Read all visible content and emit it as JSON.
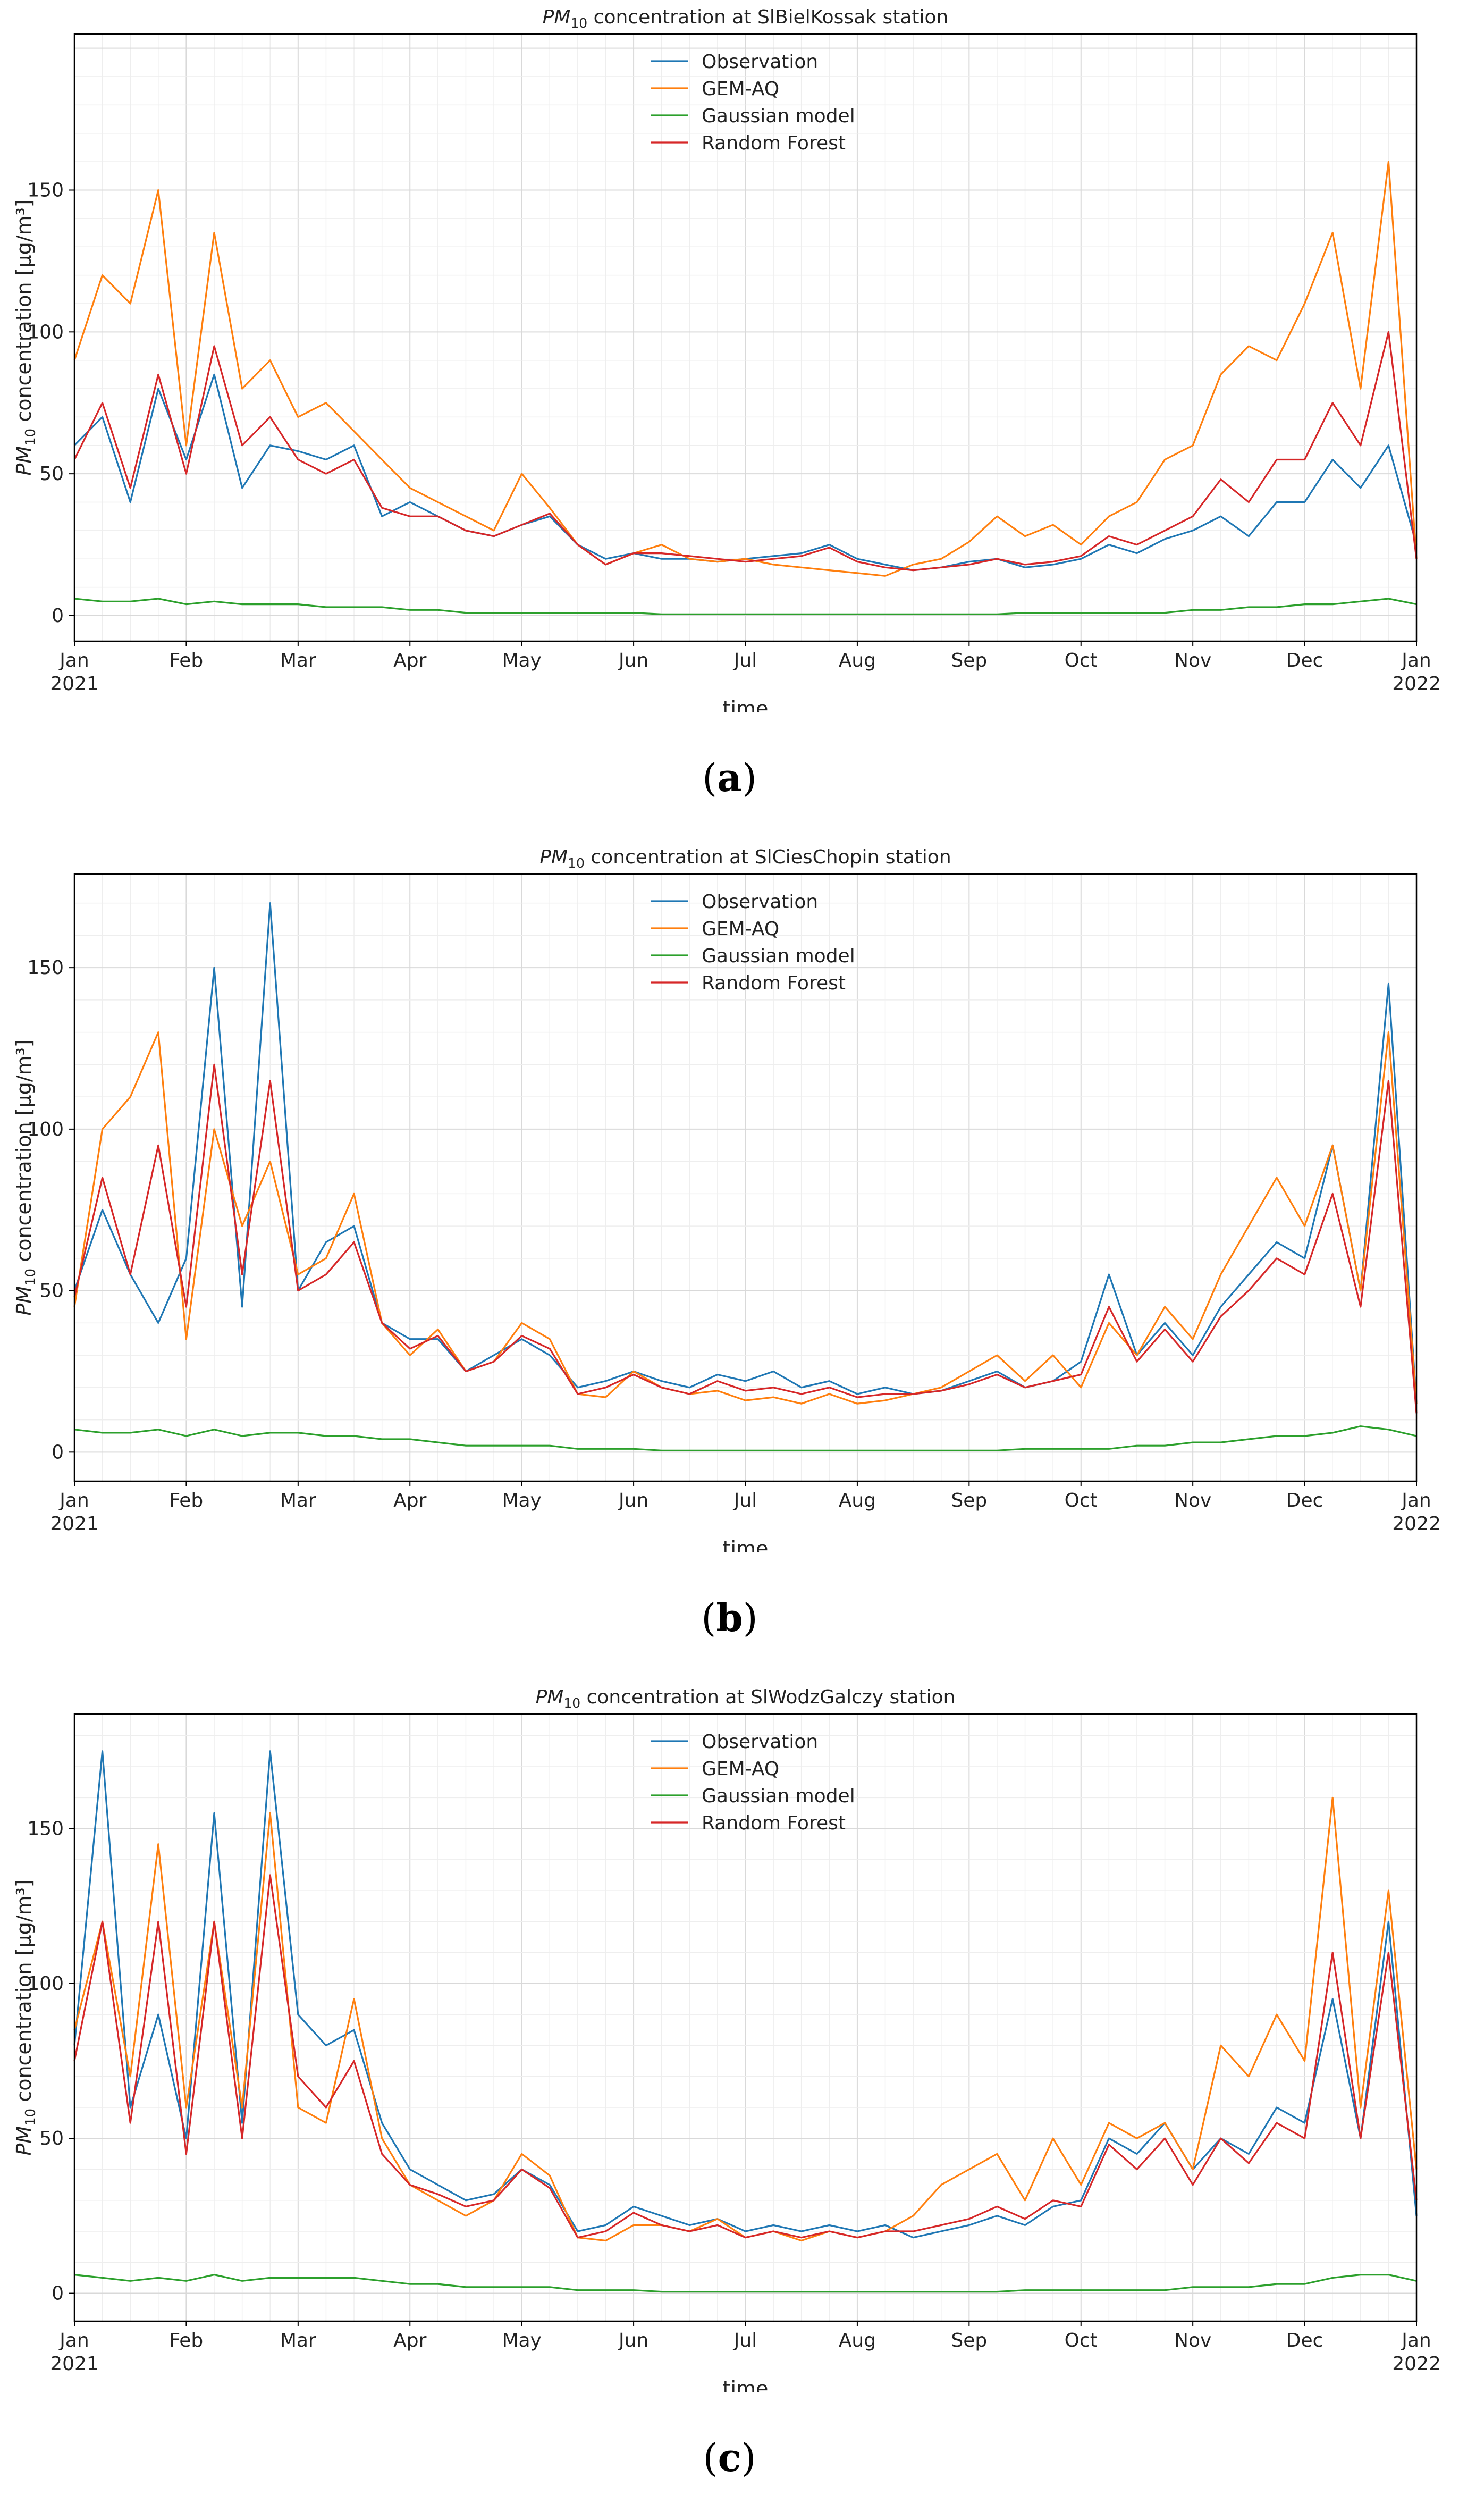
{
  "legend_labels": [
    "Observation",
    "GEM-AQ",
    "Gaussian model",
    "Random Forest"
  ],
  "colors": {
    "Observation": "#1f77b4",
    "GEM-AQ": "#ff7f0e",
    "Gaussian model": "#2ca02c",
    "Random Forest": "#d62728"
  },
  "panels": [
    {
      "caption": "a",
      "title_prefix": "PM",
      "title_sub": "10",
      "title_suffix": " concentration at SlBielKossak station",
      "ylabel_prefix": "PM",
      "ylabel_sub": "10",
      "ylabel_suffix": " concentration [μg/m³]",
      "xlabel": "time"
    },
    {
      "caption": "b",
      "title_prefix": "PM",
      "title_sub": "10",
      "title_suffix": " concentration at SlCiesChopin station",
      "ylabel_prefix": "PM",
      "ylabel_sub": "10",
      "ylabel_suffix": " concentration [μg/m³]",
      "xlabel": "time"
    },
    {
      "caption": "c",
      "title_prefix": "PM",
      "title_sub": "10",
      "title_suffix": " concentration at SlWodzGalczy station",
      "ylabel_prefix": "PM",
      "ylabel_sub": "10",
      "ylabel_suffix": " concentration [μg/m³]",
      "xlabel": "time"
    }
  ],
  "chart_data": [
    {
      "type": "line",
      "title": "PM10 concentration at SlBielKossak station",
      "xlabel": "time",
      "ylabel": "PM10 concentration [μg/m³]",
      "ylim": [
        -9,
        205
      ],
      "yticks": [
        0,
        50,
        100,
        150
      ],
      "xlim": [
        0,
        12
      ],
      "xticks": [
        {
          "pos": 0,
          "label": "Jan",
          "year": "2021"
        },
        {
          "pos": 1,
          "label": "Feb"
        },
        {
          "pos": 2,
          "label": "Mar"
        },
        {
          "pos": 3,
          "label": "Apr"
        },
        {
          "pos": 4,
          "label": "May"
        },
        {
          "pos": 5,
          "label": "Jun"
        },
        {
          "pos": 6,
          "label": "Jul"
        },
        {
          "pos": 7,
          "label": "Aug"
        },
        {
          "pos": 8,
          "label": "Sep"
        },
        {
          "pos": 9,
          "label": "Oct"
        },
        {
          "pos": 10,
          "label": "Nov"
        },
        {
          "pos": 11,
          "label": "Dec"
        },
        {
          "pos": 12,
          "label": "Jan",
          "year": "2022"
        }
      ],
      "grid": true,
      "legend": "top-center",
      "x": [
        0,
        0.25,
        0.5,
        0.75,
        1,
        1.25,
        1.5,
        1.75,
        2,
        2.25,
        2.5,
        2.75,
        3,
        3.25,
        3.5,
        3.75,
        4,
        4.25,
        4.5,
        4.75,
        5,
        5.25,
        5.5,
        5.75,
        6,
        6.25,
        6.5,
        6.75,
        7,
        7.25,
        7.5,
        7.75,
        8,
        8.25,
        8.5,
        8.75,
        9,
        9.25,
        9.5,
        9.75,
        10,
        10.25,
        10.5,
        10.75,
        11,
        11.25,
        11.5,
        11.75,
        12
      ],
      "series": [
        {
          "name": "Observation",
          "values": [
            60,
            70,
            40,
            80,
            55,
            85,
            45,
            60,
            58,
            55,
            60,
            35,
            40,
            35,
            30,
            28,
            32,
            35,
            25,
            20,
            22,
            20,
            20,
            19,
            20,
            21,
            22,
            25,
            20,
            18,
            16,
            17,
            19,
            20,
            17,
            18,
            20,
            25,
            22,
            27,
            30,
            35,
            28,
            40,
            40,
            55,
            45,
            60,
            25
          ]
        },
        {
          "name": "GEM-AQ",
          "values": [
            90,
            120,
            110,
            150,
            60,
            135,
            80,
            90,
            70,
            75,
            65,
            55,
            45,
            40,
            35,
            30,
            50,
            38,
            25,
            18,
            22,
            25,
            20,
            19,
            20,
            18,
            17,
            16,
            15,
            14,
            18,
            20,
            26,
            35,
            28,
            32,
            25,
            35,
            40,
            55,
            60,
            85,
            95,
            90,
            110,
            135,
            80,
            160,
            20
          ]
        },
        {
          "name": "Gaussian model",
          "values": [
            6,
            5,
            5,
            6,
            4,
            5,
            4,
            4,
            4,
            3,
            3,
            3,
            2,
            2,
            1,
            1,
            1,
            1,
            1,
            1,
            1,
            0.5,
            0.5,
            0.5,
            0.5,
            0.5,
            0.5,
            0.5,
            0.5,
            0.5,
            0.5,
            0.5,
            0.5,
            0.5,
            1,
            1,
            1,
            1,
            1,
            1,
            2,
            2,
            3,
            3,
            4,
            4,
            5,
            6,
            4
          ]
        },
        {
          "name": "Random Forest",
          "values": [
            55,
            75,
            45,
            85,
            50,
            95,
            60,
            70,
            55,
            50,
            55,
            38,
            35,
            35,
            30,
            28,
            32,
            36,
            25,
            18,
            22,
            22,
            21,
            20,
            19,
            20,
            21,
            24,
            19,
            17,
            16,
            17,
            18,
            20,
            18,
            19,
            21,
            28,
            25,
            30,
            35,
            48,
            40,
            55,
            55,
            75,
            60,
            100,
            20
          ]
        }
      ]
    },
    {
      "type": "line",
      "title": "PM10 concentration at SlCiesChopin station",
      "xlabel": "time",
      "ylabel": "PM10 concentration [μg/m³]",
      "ylim": [
        -9,
        179
      ],
      "yticks": [
        0,
        50,
        100,
        150
      ],
      "xlim": [
        0,
        12
      ],
      "xticks": [
        {
          "pos": 0,
          "label": "Jan",
          "year": "2021"
        },
        {
          "pos": 1,
          "label": "Feb"
        },
        {
          "pos": 2,
          "label": "Mar"
        },
        {
          "pos": 3,
          "label": "Apr"
        },
        {
          "pos": 4,
          "label": "May"
        },
        {
          "pos": 5,
          "label": "Jun"
        },
        {
          "pos": 6,
          "label": "Jul"
        },
        {
          "pos": 7,
          "label": "Aug"
        },
        {
          "pos": 8,
          "label": "Sep"
        },
        {
          "pos": 9,
          "label": "Oct"
        },
        {
          "pos": 10,
          "label": "Nov"
        },
        {
          "pos": 11,
          "label": "Dec"
        },
        {
          "pos": 12,
          "label": "Jan",
          "year": "2022"
        }
      ],
      "grid": true,
      "legend": "top-center",
      "x": [
        0,
        0.25,
        0.5,
        0.75,
        1,
        1.25,
        1.5,
        1.75,
        2,
        2.25,
        2.5,
        2.75,
        3,
        3.25,
        3.5,
        3.75,
        4,
        4.25,
        4.5,
        4.75,
        5,
        5.25,
        5.5,
        5.75,
        6,
        6.25,
        6.5,
        6.75,
        7,
        7.25,
        7.5,
        7.75,
        8,
        8.25,
        8.5,
        8.75,
        9,
        9.25,
        9.5,
        9.75,
        10,
        10.25,
        10.5,
        10.75,
        11,
        11.25,
        11.5,
        11.75,
        12
      ],
      "series": [
        {
          "name": "Observation",
          "values": [
            50,
            75,
            55,
            40,
            60,
            150,
            45,
            170,
            50,
            65,
            70,
            40,
            35,
            35,
            25,
            30,
            35,
            30,
            20,
            22,
            25,
            22,
            20,
            24,
            22,
            25,
            20,
            22,
            18,
            20,
            18,
            19,
            22,
            25,
            20,
            22,
            28,
            55,
            30,
            40,
            30,
            45,
            55,
            65,
            60,
            95,
            50,
            145,
            15
          ]
        },
        {
          "name": "GEM-AQ",
          "values": [
            45,
            100,
            110,
            130,
            35,
            100,
            70,
            90,
            55,
            60,
            80,
            40,
            30,
            38,
            25,
            28,
            40,
            35,
            18,
            17,
            25,
            20,
            18,
            19,
            16,
            17,
            15,
            18,
            15,
            16,
            18,
            20,
            25,
            30,
            22,
            30,
            20,
            40,
            30,
            45,
            35,
            55,
            70,
            85,
            70,
            95,
            50,
            130,
            15
          ]
        },
        {
          "name": "Gaussian model",
          "values": [
            7,
            6,
            6,
            7,
            5,
            7,
            5,
            6,
            6,
            5,
            5,
            4,
            4,
            3,
            2,
            2,
            2,
            2,
            1,
            1,
            1,
            0.5,
            0.5,
            0.5,
            0.5,
            0.5,
            0.5,
            0.5,
            0.5,
            0.5,
            0.5,
            0.5,
            0.5,
            0.5,
            1,
            1,
            1,
            1,
            2,
            2,
            3,
            3,
            4,
            5,
            5,
            6,
            8,
            7,
            5
          ]
        },
        {
          "name": "Random Forest",
          "values": [
            48,
            85,
            55,
            95,
            45,
            120,
            55,
            115,
            50,
            55,
            65,
            40,
            32,
            36,
            25,
            28,
            36,
            32,
            18,
            20,
            24,
            20,
            18,
            22,
            19,
            20,
            18,
            20,
            17,
            18,
            18,
            19,
            21,
            24,
            20,
            22,
            24,
            45,
            28,
            38,
            28,
            42,
            50,
            60,
            55,
            80,
            45,
            115,
            12
          ]
        }
      ]
    },
    {
      "type": "line",
      "title": "PM10 concentration at SlWodzGalczy station",
      "xlabel": "time",
      "ylabel": "PM10 concentration [μg/m³]",
      "ylim": [
        -9,
        187
      ],
      "yticks": [
        0,
        50,
        100,
        150
      ],
      "xlim": [
        0,
        12
      ],
      "xticks": [
        {
          "pos": 0,
          "label": "Jan",
          "year": "2021"
        },
        {
          "pos": 1,
          "label": "Feb"
        },
        {
          "pos": 2,
          "label": "Mar"
        },
        {
          "pos": 3,
          "label": "Apr"
        },
        {
          "pos": 4,
          "label": "May"
        },
        {
          "pos": 5,
          "label": "Jun"
        },
        {
          "pos": 6,
          "label": "Jul"
        },
        {
          "pos": 7,
          "label": "Aug"
        },
        {
          "pos": 8,
          "label": "Sep"
        },
        {
          "pos": 9,
          "label": "Oct"
        },
        {
          "pos": 10,
          "label": "Nov"
        },
        {
          "pos": 11,
          "label": "Dec"
        },
        {
          "pos": 12,
          "label": "Jan",
          "year": "2022"
        }
      ],
      "grid": true,
      "legend": "top-center",
      "x": [
        0,
        0.25,
        0.5,
        0.75,
        1,
        1.25,
        1.5,
        1.75,
        2,
        2.25,
        2.5,
        2.75,
        3,
        3.25,
        3.5,
        3.75,
        4,
        4.25,
        4.5,
        4.75,
        5,
        5.25,
        5.5,
        5.75,
        6,
        6.25,
        6.5,
        6.75,
        7,
        7.25,
        7.5,
        7.75,
        8,
        8.25,
        8.5,
        8.75,
        9,
        9.25,
        9.5,
        9.75,
        10,
        10.25,
        10.5,
        10.75,
        11,
        11.25,
        11.5,
        11.75,
        12
      ],
      "series": [
        {
          "name": "Observation",
          "values": [
            80,
            175,
            60,
            90,
            50,
            155,
            55,
            175,
            90,
            80,
            85,
            55,
            40,
            35,
            30,
            32,
            40,
            35,
            20,
            22,
            28,
            25,
            22,
            24,
            20,
            22,
            20,
            22,
            20,
            22,
            18,
            20,
            22,
            25,
            22,
            28,
            30,
            50,
            45,
            55,
            40,
            50,
            45,
            60,
            55,
            95,
            50,
            120,
            25
          ]
        },
        {
          "name": "GEM-AQ",
          "values": [
            85,
            120,
            70,
            145,
            60,
            120,
            60,
            155,
            60,
            55,
            95,
            50,
            35,
            30,
            25,
            30,
            45,
            38,
            18,
            17,
            22,
            22,
            20,
            24,
            18,
            20,
            17,
            20,
            18,
            20,
            25,
            35,
            40,
            45,
            30,
            50,
            35,
            55,
            50,
            55,
            40,
            80,
            70,
            90,
            75,
            160,
            60,
            130,
            40
          ]
        },
        {
          "name": "Gaussian model",
          "values": [
            6,
            5,
            4,
            5,
            4,
            6,
            4,
            5,
            5,
            5,
            5,
            4,
            3,
            3,
            2,
            2,
            2,
            2,
            1,
            1,
            1,
            0.5,
            0.5,
            0.5,
            0.5,
            0.5,
            0.5,
            0.5,
            0.5,
            0.5,
            0.5,
            0.5,
            0.5,
            0.5,
            1,
            1,
            1,
            1,
            1,
            1,
            2,
            2,
            2,
            3,
            3,
            5,
            6,
            6,
            4
          ]
        },
        {
          "name": "Random Forest",
          "values": [
            75,
            120,
            55,
            120,
            45,
            120,
            50,
            135,
            70,
            60,
            75,
            45,
            35,
            32,
            28,
            30,
            40,
            34,
            18,
            20,
            26,
            22,
            20,
            22,
            18,
            20,
            18,
            20,
            18,
            20,
            20,
            22,
            24,
            28,
            24,
            30,
            28,
            48,
            40,
            50,
            35,
            50,
            42,
            55,
            50,
            110,
            50,
            110,
            30
          ]
        }
      ]
    }
  ]
}
